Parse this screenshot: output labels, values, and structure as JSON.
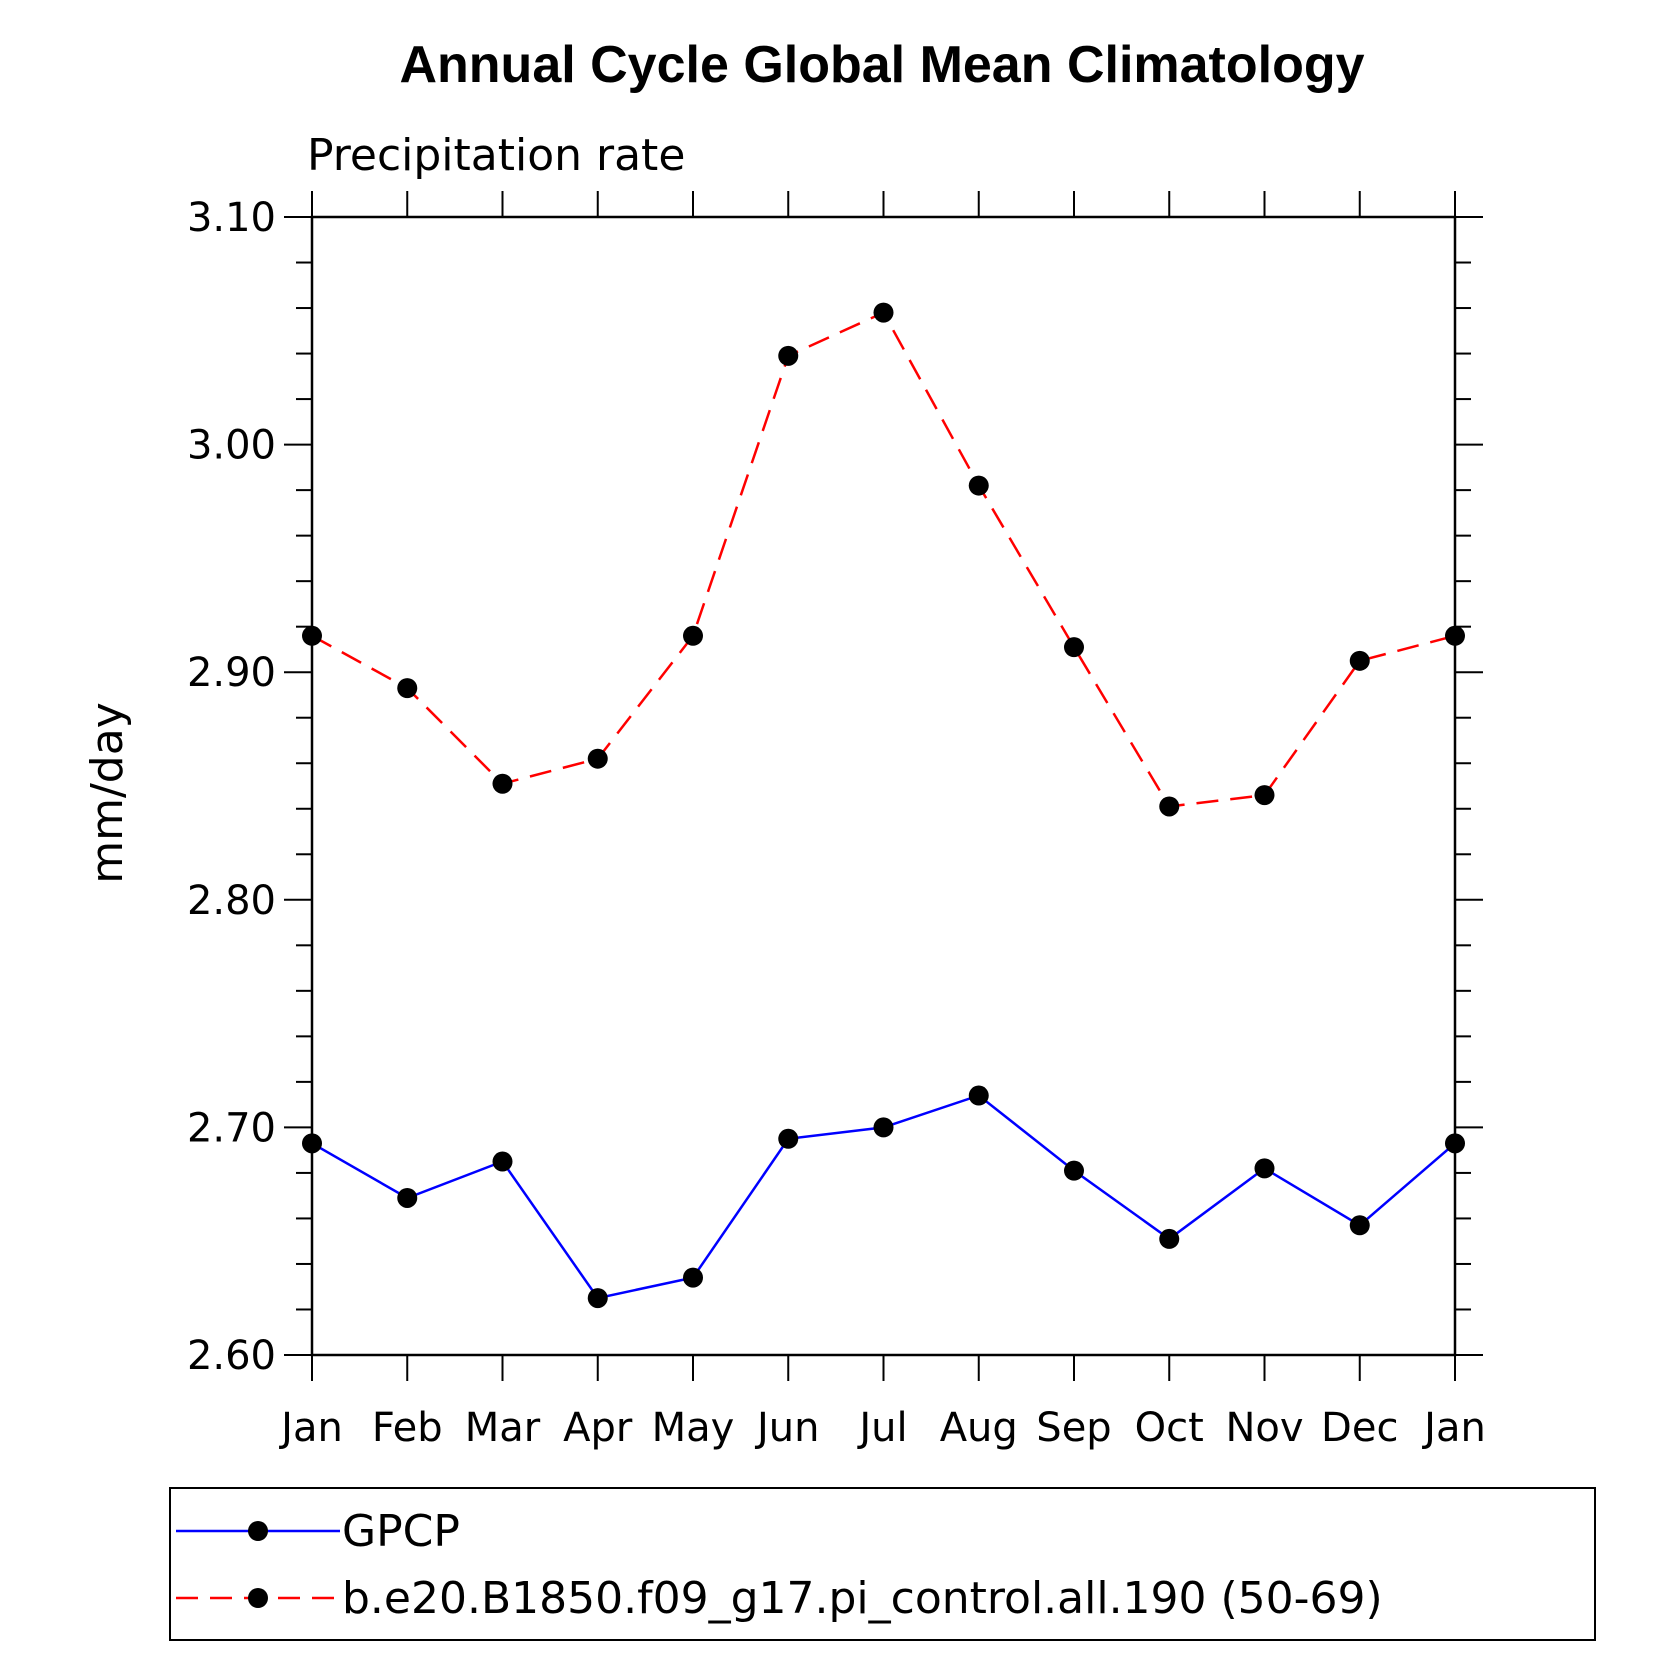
{
  "chart_data": {
    "type": "line",
    "title": "Annual Cycle Global Mean Climatology",
    "subtitle": "Precipitation rate",
    "ylabel": "mm/day",
    "xlabel": "",
    "categories": [
      "Jan",
      "Feb",
      "Mar",
      "Apr",
      "May",
      "Jun",
      "Jul",
      "Aug",
      "Sep",
      "Oct",
      "Nov",
      "Dec",
      "Jan"
    ],
    "ylim": [
      2.6,
      3.1
    ],
    "yticks": [
      "3.10",
      "3.00",
      "2.90",
      "2.80",
      "2.70",
      "2.60"
    ],
    "grid": false,
    "legend_position": "bottom",
    "series": [
      {
        "name": "GPCP",
        "color": "#0000ff",
        "line_style": "solid",
        "marker": "filled-circle",
        "values": [
          2.693,
          2.669,
          2.685,
          2.625,
          2.634,
          2.695,
          2.7,
          2.714,
          2.681,
          2.651,
          2.682,
          2.657,
          2.693
        ]
      },
      {
        "name": "b.e20.B1850.f09_g17.pi_control.all.190 (50-69)",
        "color": "#ff0000",
        "line_style": "dashed",
        "marker": "filled-circle",
        "values": [
          2.916,
          2.893,
          2.851,
          2.862,
          2.916,
          3.039,
          3.058,
          2.982,
          2.911,
          2.841,
          2.846,
          2.905,
          2.916
        ]
      }
    ]
  }
}
